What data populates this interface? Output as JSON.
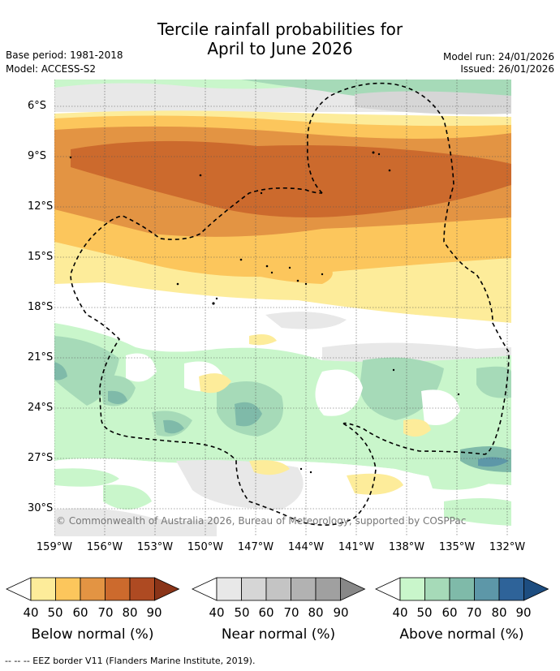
{
  "title": {
    "line1": "Tercile rainfall probabilities for",
    "line2": "April to June 2026"
  },
  "meta": {
    "base_period": "Base period: 1981-2018",
    "model": "Model: ACCESS-S2",
    "model_run": "Model run: 24/01/2026",
    "issued": "Issued: 26/01/2026"
  },
  "map": {
    "copyright": "© Commonwealth of Australia 2026, Bureau of Meteorology, supported by COSPPac",
    "lat_labels": [
      "6°S",
      "9°S",
      "12°S",
      "15°S",
      "18°S",
      "21°S",
      "24°S",
      "27°S",
      "30°S"
    ],
    "lon_labels": [
      "159°W",
      "156°W",
      "153°W",
      "150°W",
      "147°W",
      "144°W",
      "141°W",
      "138°W",
      "135°W",
      "132°W"
    ]
  },
  "legend": {
    "ticks": [
      "40",
      "50",
      "60",
      "70",
      "80",
      "90"
    ],
    "below": {
      "title": "Below normal (%)",
      "colors": [
        "#fdec9a",
        "#fcc65c",
        "#e39443",
        "#cc6a2d",
        "#ae4a22",
        "#8a3418"
      ]
    },
    "near": {
      "title": "Near normal (%)",
      "colors": [
        "#e8e8e8",
        "#d6d6d6",
        "#c4c4c4",
        "#b2b2b2",
        "#a0a0a0",
        "#888888"
      ]
    },
    "above": {
      "title": "Above normal (%)",
      "colors": [
        "#c9f6cb",
        "#a6dab8",
        "#7fbaa9",
        "#5d97a8",
        "#2e6399",
        "#1d4d80"
      ]
    }
  },
  "eez_note": "--  --  -- EEZ border V11 (Flanders Marine Institute, 2019)."
}
